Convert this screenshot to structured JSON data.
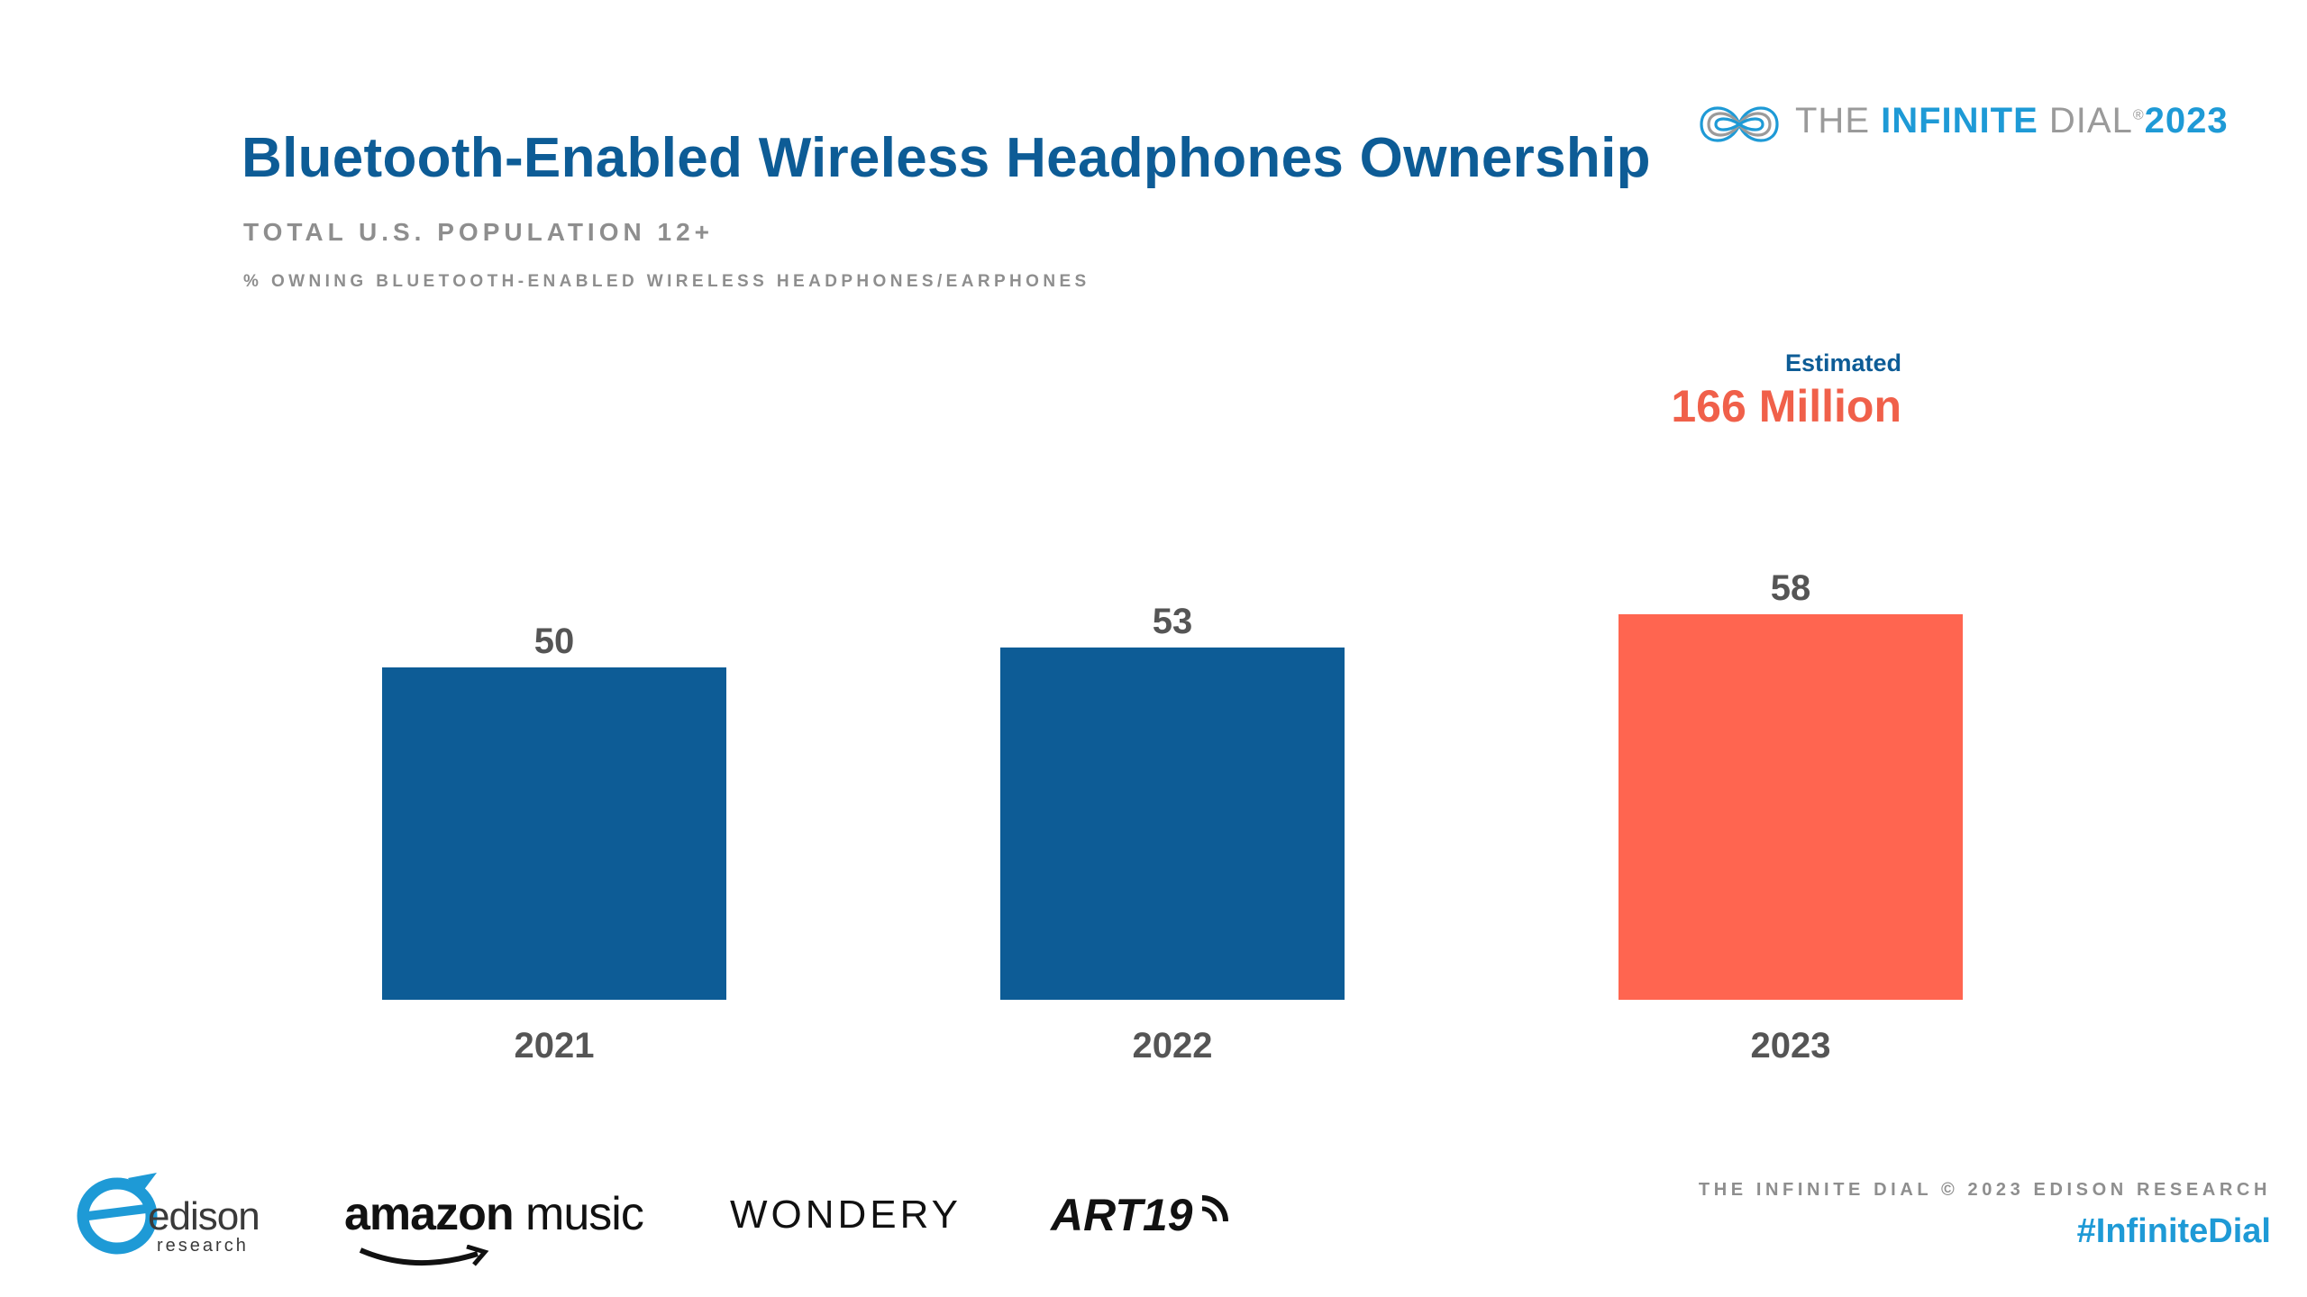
{
  "slide": {
    "title": "Bluetooth-Enabled Wireless Headphones Ownership",
    "subtitle": "TOTAL U.S. POPULATION 12+",
    "subtitle2": "% OWNING BLUETOOTH-ENABLED WIRELESS HEADPHONES/EARPHONES"
  },
  "brand": {
    "the": "THE ",
    "infinite": "INFINITE",
    "dial": " DIAL",
    "reg": "®",
    "year": "2023"
  },
  "estimate": {
    "label": "Estimated",
    "value": "166 Million"
  },
  "chart_data": {
    "type": "bar",
    "categories": [
      "2021",
      "2022",
      "2023"
    ],
    "values": [
      50,
      53,
      58
    ],
    "data_labels": [
      "50",
      "53",
      "58"
    ],
    "ylim": [
      0,
      100
    ],
    "grid": false,
    "legend": "none",
    "colors": [
      "#0d5c96",
      "#0d5c96",
      "#ff6550"
    ]
  },
  "footer": {
    "edison_name": "edison",
    "edison_sub": "research",
    "amazon_a": "amazon",
    "amazon_b": " music",
    "wondery": "WONDERY",
    "art19": "ART19",
    "credit": "THE INFINITE DIAL   © 2023 EDISON RESEARCH",
    "hashtag": "#InfiniteDial"
  },
  "colors": {
    "title": "#0d5c96",
    "accent": "#1e9ad6",
    "highlight": "#ff6550",
    "muted": "#8e8e8e"
  }
}
